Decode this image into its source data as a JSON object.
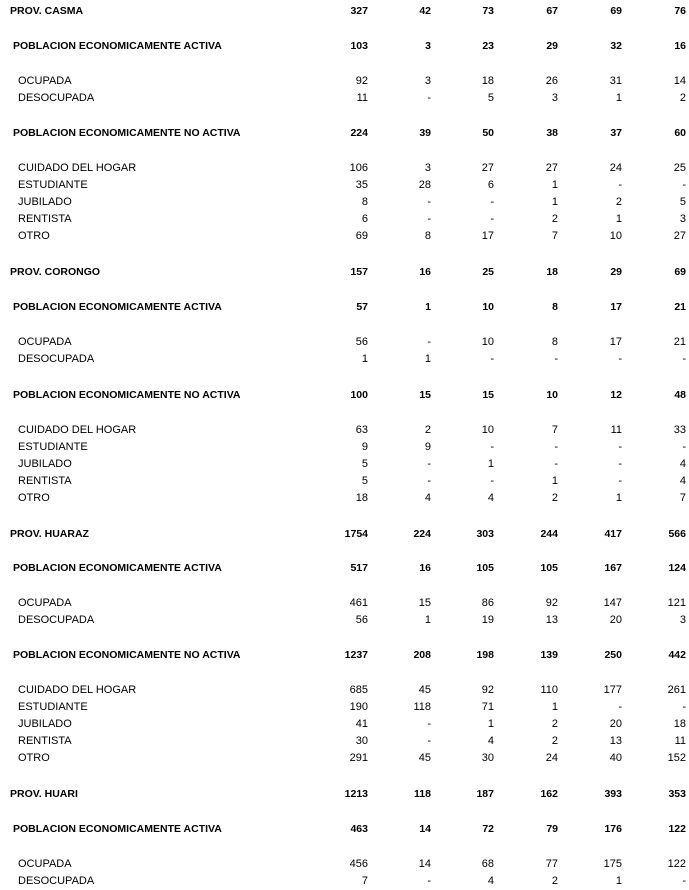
{
  "rows": [
    {
      "type": "province",
      "label": "PROV. CASMA",
      "values": [
        "327",
        "42",
        "73",
        "67",
        "69",
        "76"
      ]
    },
    {
      "type": "group",
      "label": "POBLACION ECONOMICAMENTE ACTIVA",
      "values": [
        "103",
        "3",
        "23",
        "29",
        "32",
        "16"
      ]
    },
    {
      "type": "item",
      "label": "OCUPADA",
      "values": [
        "92",
        "3",
        "18",
        "26",
        "31",
        "14"
      ]
    },
    {
      "type": "item",
      "label": "DESOCUPADA",
      "values": [
        "11",
        "-",
        "5",
        "3",
        "1",
        "2"
      ]
    },
    {
      "type": "group",
      "label": "POBLACION ECONOMICAMENTE NO ACTIVA",
      "values": [
        "224",
        "39",
        "50",
        "38",
        "37",
        "60"
      ]
    },
    {
      "type": "item",
      "label": "CUIDADO DEL HOGAR",
      "values": [
        "106",
        "3",
        "27",
        "27",
        "24",
        "25"
      ]
    },
    {
      "type": "item",
      "label": "ESTUDIANTE",
      "values": [
        "35",
        "28",
        "6",
        "1",
        "-",
        "-"
      ]
    },
    {
      "type": "item",
      "label": "JUBILADO",
      "values": [
        "8",
        "-",
        "-",
        "1",
        "2",
        "5"
      ]
    },
    {
      "type": "item",
      "label": "RENTISTA",
      "values": [
        "6",
        "-",
        "-",
        "2",
        "1",
        "3"
      ]
    },
    {
      "type": "item",
      "label": "OTRO",
      "values": [
        "69",
        "8",
        "17",
        "7",
        "10",
        "27"
      ]
    },
    {
      "type": "province",
      "label": "PROV. CORONGO",
      "values": [
        "157",
        "16",
        "25",
        "18",
        "29",
        "69"
      ]
    },
    {
      "type": "group",
      "label": "POBLACION ECONOMICAMENTE ACTIVA",
      "values": [
        "57",
        "1",
        "10",
        "8",
        "17",
        "21"
      ]
    },
    {
      "type": "item",
      "label": "OCUPADA",
      "values": [
        "56",
        "-",
        "10",
        "8",
        "17",
        "21"
      ]
    },
    {
      "type": "item",
      "label": "DESOCUPADA",
      "values": [
        "1",
        "1",
        "-",
        "-",
        "-",
        "-"
      ]
    },
    {
      "type": "group",
      "label": "POBLACION ECONOMICAMENTE NO ACTIVA",
      "values": [
        "100",
        "15",
        "15",
        "10",
        "12",
        "48"
      ]
    },
    {
      "type": "item",
      "label": "CUIDADO DEL HOGAR",
      "values": [
        "63",
        "2",
        "10",
        "7",
        "11",
        "33"
      ]
    },
    {
      "type": "item",
      "label": "ESTUDIANTE",
      "values": [
        "9",
        "9",
        "-",
        "-",
        "-",
        "-"
      ]
    },
    {
      "type": "item",
      "label": "JUBILADO",
      "values": [
        "5",
        "-",
        "1",
        "-",
        "-",
        "4"
      ]
    },
    {
      "type": "item",
      "label": "RENTISTA",
      "values": [
        "5",
        "-",
        "-",
        "1",
        "-",
        "4"
      ]
    },
    {
      "type": "item",
      "label": "OTRO",
      "values": [
        "18",
        "4",
        "4",
        "2",
        "1",
        "7"
      ]
    },
    {
      "type": "province",
      "label": "PROV. HUARAZ",
      "values": [
        "1754",
        "224",
        "303",
        "244",
        "417",
        "566"
      ]
    },
    {
      "type": "group",
      "label": "POBLACION ECONOMICAMENTE ACTIVA",
      "values": [
        "517",
        "16",
        "105",
        "105",
        "167",
        "124"
      ]
    },
    {
      "type": "item",
      "label": "OCUPADA",
      "values": [
        "461",
        "15",
        "86",
        "92",
        "147",
        "121"
      ]
    },
    {
      "type": "item",
      "label": "DESOCUPADA",
      "values": [
        "56",
        "1",
        "19",
        "13",
        "20",
        "3"
      ]
    },
    {
      "type": "group",
      "label": "POBLACION ECONOMICAMENTE NO ACTIVA",
      "values": [
        "1237",
        "208",
        "198",
        "139",
        "250",
        "442"
      ]
    },
    {
      "type": "item",
      "label": "CUIDADO DEL HOGAR",
      "values": [
        "685",
        "45",
        "92",
        "110",
        "177",
        "261"
      ]
    },
    {
      "type": "item",
      "label": "ESTUDIANTE",
      "values": [
        "190",
        "118",
        "71",
        "1",
        "-",
        "-"
      ]
    },
    {
      "type": "item",
      "label": "JUBILADO",
      "values": [
        "41",
        "-",
        "1",
        "2",
        "20",
        "18"
      ]
    },
    {
      "type": "item",
      "label": "RENTISTA",
      "values": [
        "30",
        "-",
        "4",
        "2",
        "13",
        "11"
      ]
    },
    {
      "type": "item",
      "label": "OTRO",
      "values": [
        "291",
        "45",
        "30",
        "24",
        "40",
        "152"
      ]
    },
    {
      "type": "province",
      "label": "PROV. HUARI",
      "values": [
        "1213",
        "118",
        "187",
        "162",
        "393",
        "353"
      ]
    },
    {
      "type": "group",
      "label": "POBLACION ECONOMICAMENTE ACTIVA",
      "values": [
        "463",
        "14",
        "72",
        "79",
        "176",
        "122"
      ]
    },
    {
      "type": "item",
      "label": "OCUPADA",
      "values": [
        "456",
        "14",
        "68",
        "77",
        "175",
        "122"
      ]
    },
    {
      "type": "item",
      "label": "DESOCUPADA",
      "values": [
        "7",
        "-",
        "4",
        "2",
        "1",
        "-"
      ]
    }
  ]
}
